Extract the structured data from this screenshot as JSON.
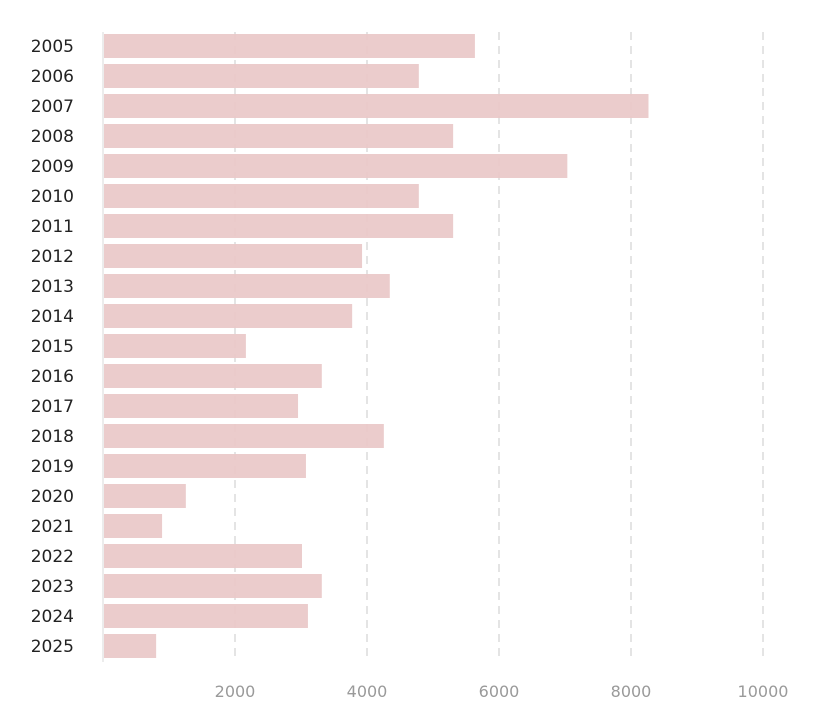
{
  "chart_data": {
    "type": "bar",
    "orientation": "horizontal",
    "categories": [
      "2005",
      "2006",
      "2007",
      "2008",
      "2009",
      "2010",
      "2011",
      "2012",
      "2013",
      "2014",
      "2015",
      "2016",
      "2017",
      "2018",
      "2019",
      "2020",
      "2021",
      "2022",
      "2023",
      "2024",
      "2025"
    ],
    "values": [
      5620,
      4770,
      8250,
      5290,
      7020,
      4770,
      5290,
      3910,
      4330,
      3760,
      2150,
      3300,
      2940,
      4240,
      3060,
      1240,
      880,
      3000,
      3300,
      3090,
      790
    ],
    "x_ticks": [
      "2000",
      "4000",
      "6000",
      "8000",
      "10000"
    ],
    "xlim": [
      0,
      10000
    ],
    "bar_color": "#e9c8c8",
    "grid": true,
    "title": "",
    "xlabel": "",
    "ylabel": ""
  }
}
